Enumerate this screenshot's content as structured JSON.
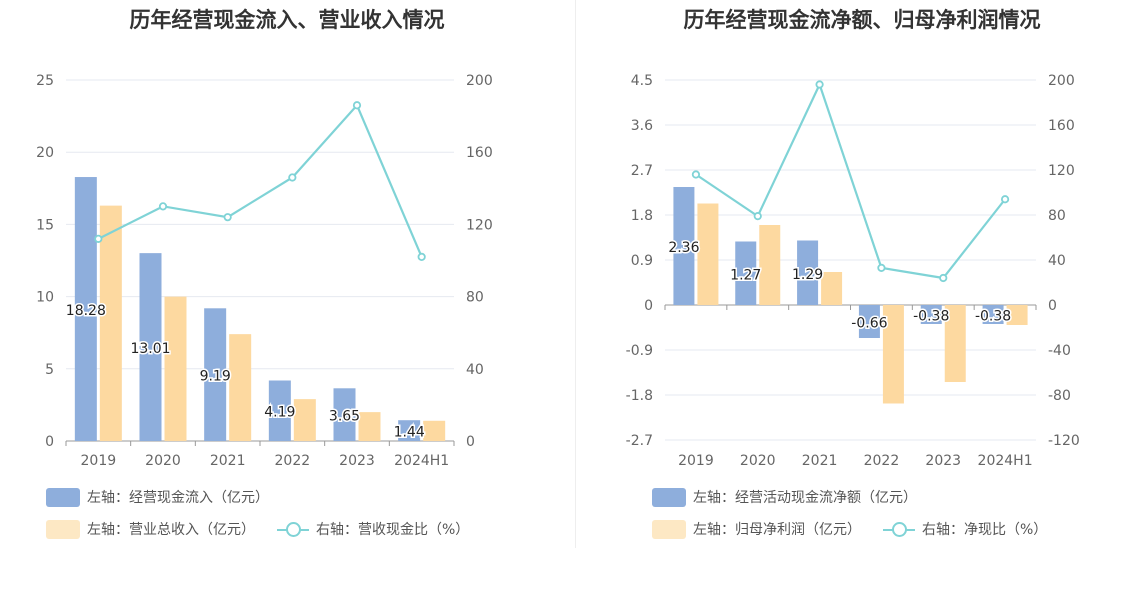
{
  "chart_data": [
    {
      "type": "bar",
      "title": "历年经营现金流入、营业收入情况",
      "categories": [
        "2019",
        "2020",
        "2021",
        "2022",
        "2023",
        "2024H1"
      ],
      "left_axis": {
        "ticks": [
          "25",
          "20",
          "15",
          "10",
          "5",
          "0"
        ],
        "min": 0,
        "max": 25
      },
      "right_axis": {
        "ticks": [
          "200",
          "160",
          "120",
          "80",
          "40",
          "0"
        ],
        "min": 0,
        "max": 200
      },
      "series": [
        {
          "name": "左轴：经营现金流入（亿元）",
          "type": "bar",
          "axis": "left",
          "color": "#8eaedc",
          "values": [
            18.28,
            13.01,
            9.19,
            4.19,
            3.65,
            1.44
          ],
          "labels": [
            "18.28",
            "13.01",
            "9.19",
            "4.19",
            "3.65",
            "1.44"
          ]
        },
        {
          "name": "左轴：营业总收入（亿元）",
          "type": "bar",
          "axis": "left",
          "color": "#fdd9a0",
          "values": [
            16.3,
            10.0,
            7.4,
            2.9,
            2.0,
            1.4
          ]
        },
        {
          "name": "右轴：营收现金比（%）",
          "type": "line",
          "axis": "right",
          "color": "#7fd3d6",
          "values": [
            112,
            130,
            124,
            146,
            186,
            102
          ]
        }
      ]
    },
    {
      "type": "bar",
      "title": "历年经营现金流净额、归母净利润情况",
      "categories": [
        "2019",
        "2020",
        "2021",
        "2022",
        "2023",
        "2024H1"
      ],
      "left_axis": {
        "ticks": [
          "4.5",
          "3.6",
          "2.7",
          "1.8",
          "0.9",
          "0",
          "-0.9",
          "-1.8",
          "-2.7"
        ],
        "min": -2.7,
        "max": 4.5
      },
      "right_axis": {
        "ticks": [
          "200",
          "160",
          "120",
          "80",
          "40",
          "0",
          "-40",
          "-80",
          "-120"
        ],
        "min": -120,
        "max": 200
      },
      "series": [
        {
          "name": "左轴：经营活动现金流净额（亿元）",
          "type": "bar",
          "axis": "left",
          "color": "#8eaedc",
          "values": [
            2.36,
            1.27,
            1.29,
            -0.66,
            -0.38,
            -0.38
          ],
          "labels": [
            "2.36",
            "1.27",
            "1.29",
            "-0.66",
            "-0.38",
            "-0.38"
          ]
        },
        {
          "name": "左轴：归母净利润（亿元）",
          "type": "bar",
          "axis": "left",
          "color": "#fdd9a0",
          "values": [
            2.03,
            1.6,
            0.66,
            -1.97,
            -1.54,
            -0.4
          ]
        },
        {
          "name": "右轴：净现比（%）",
          "type": "line",
          "axis": "right",
          "color": "#7fd3d6",
          "values": [
            116,
            79,
            196,
            33,
            24,
            94
          ]
        }
      ]
    }
  ]
}
